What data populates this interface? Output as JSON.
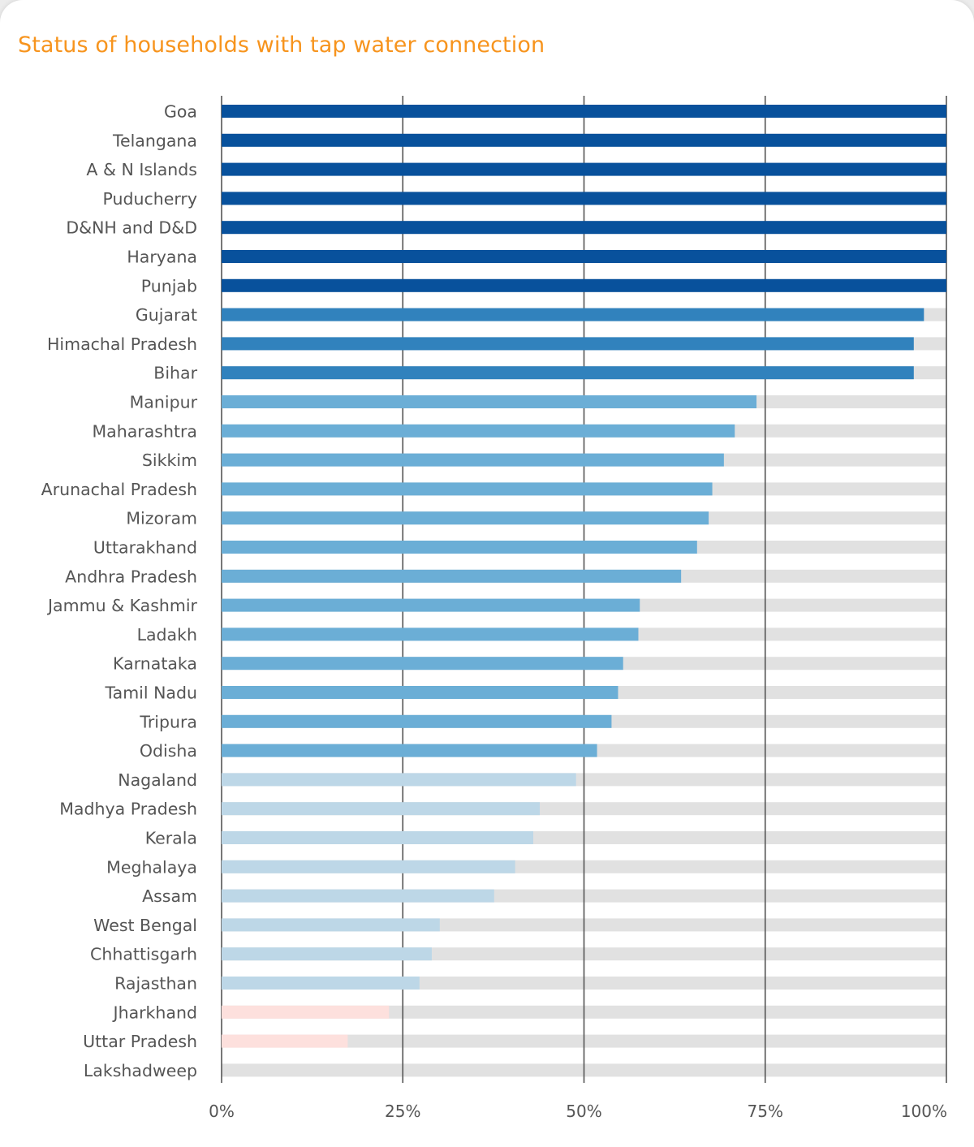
{
  "chart_data": {
    "type": "bar",
    "orientation": "horizontal",
    "stacked_with_remainder": true,
    "title": "Status of households with tap water connection",
    "xlim": [
      0,
      100
    ],
    "x_ticks": [
      0,
      25,
      50,
      75,
      100
    ],
    "x_tick_labels": [
      "0%",
      "25%",
      "50%",
      "75%",
      "100%"
    ],
    "grid": true,
    "categories": [
      "Goa",
      "Telangana",
      "A & N Islands",
      "Puducherry",
      "D&NH and D&D",
      "Haryana",
      "Punjab",
      "Gujarat",
      "Himachal Pradesh",
      "Bihar",
      "Manipur",
      "Maharashtra",
      "Sikkim",
      "Arunachal Pradesh",
      "Mizoram",
      "Uttarakhand",
      "Andhra Pradesh",
      "Jammu & Kashmir",
      "Ladakh",
      "Karnataka",
      "Tamil Nadu",
      "Tripura",
      "Odisha",
      "Nagaland",
      "Madhya Pradesh",
      "Kerala",
      "Meghalaya",
      "Assam",
      "West Bengal",
      "Chhattisgarh",
      "Rajasthan",
      "Jharkhand",
      "Uttar Pradesh",
      "Lakshadweep"
    ],
    "values": [
      100,
      100,
      100,
      100,
      100,
      100,
      100,
      96.9,
      95.5,
      95.5,
      73.8,
      70.8,
      69.3,
      67.7,
      67.2,
      65.6,
      63.4,
      57.7,
      57.5,
      55.4,
      54.7,
      53.8,
      51.8,
      48.9,
      43.9,
      43.0,
      40.5,
      37.6,
      30.1,
      29.0,
      27.3,
      23.1,
      17.4,
      0
    ],
    "colors": {
      "band_100": "#08519c",
      "band_75_100": "#3182bd",
      "band_50_75": "#6baed6",
      "band_25_50": "#bdd7e7",
      "band_0_25": "#fde0dd",
      "remainder": "#e1e1e1",
      "title": "#f7941d"
    }
  }
}
